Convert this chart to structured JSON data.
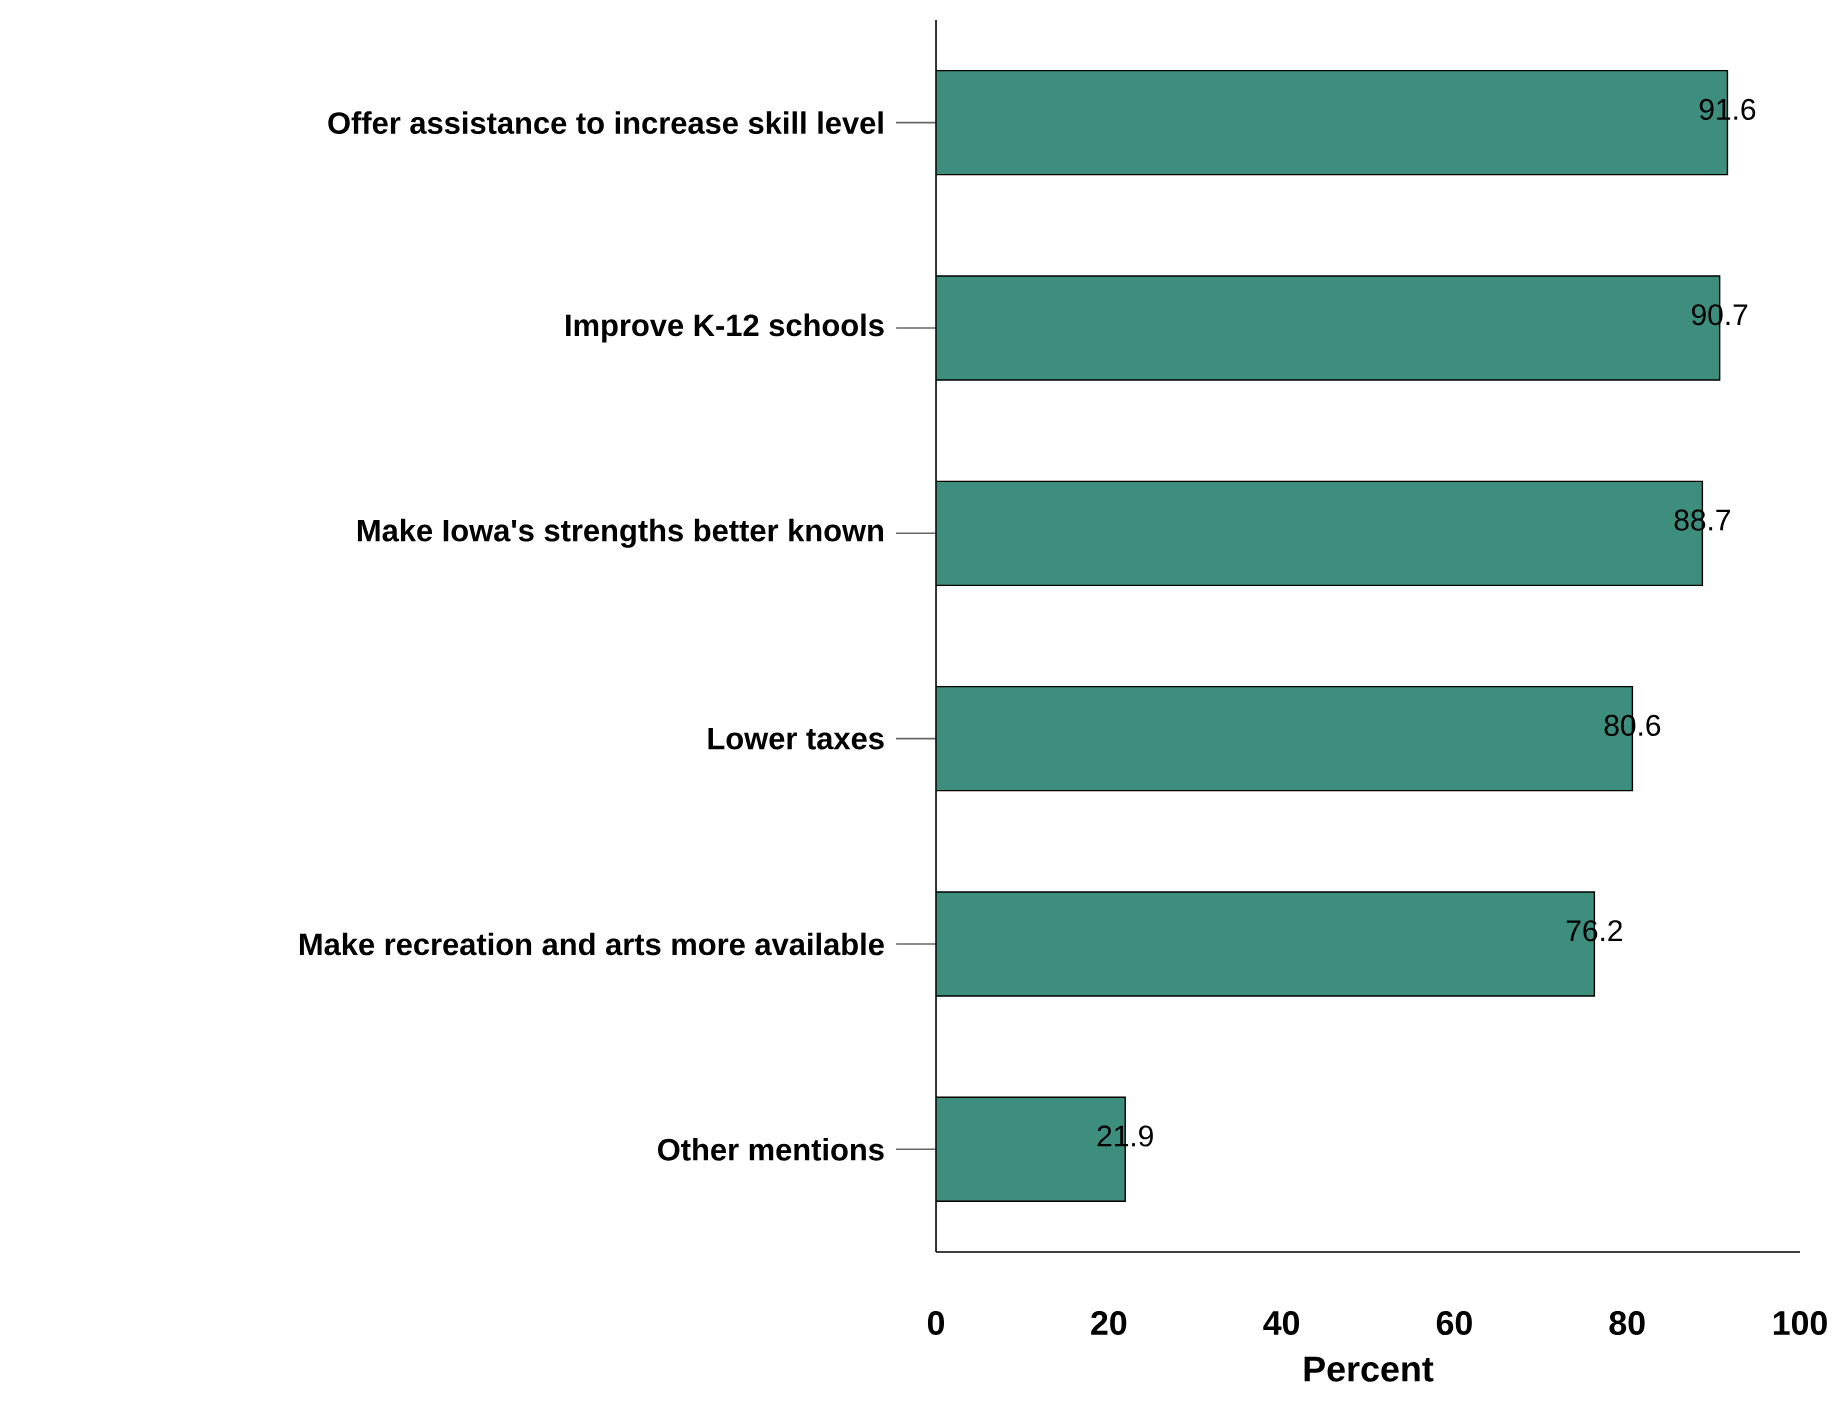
{
  "chart_data": {
    "type": "bar",
    "orientation": "horizontal",
    "categories": [
      "Offer assistance to increase skill level",
      "Improve K-12 schools",
      "Make Iowa's strengths better known",
      "Lower taxes",
      "Make recreation and arts more available",
      "Other mentions"
    ],
    "values": [
      91.6,
      90.7,
      88.7,
      80.6,
      76.2,
      21.9
    ],
    "color": "#3e8e7e",
    "xlim": [
      0,
      100
    ],
    "xticks": [
      0,
      20,
      40,
      60,
      80,
      100
    ],
    "xlabel": "Percent",
    "data_labels": true,
    "grid": false
  }
}
